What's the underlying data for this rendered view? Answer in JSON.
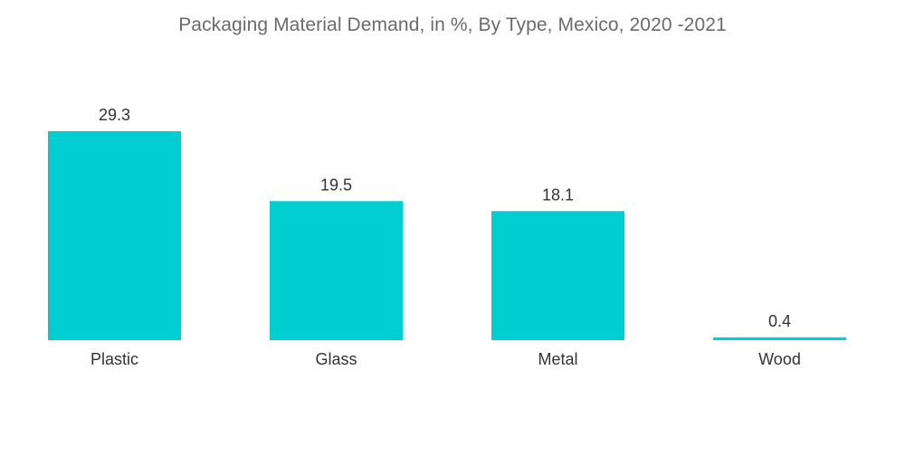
{
  "chart_data": {
    "type": "bar",
    "title": "Packaging Material Demand, in %, By Type, Mexico, 2020 -2021",
    "categories": [
      "Plastic",
      "Glass",
      "Metal",
      "Wood"
    ],
    "values": [
      29.3,
      19.5,
      18.1,
      0.4
    ],
    "value_labels": [
      "29.3",
      "19.5",
      "18.1",
      "0.4"
    ],
    "xlabel": "",
    "ylabel": "",
    "ylim": [
      0,
      29.3
    ],
    "grid": false,
    "legend": "none",
    "colors": {
      "bar": "#00ced1"
    }
  }
}
